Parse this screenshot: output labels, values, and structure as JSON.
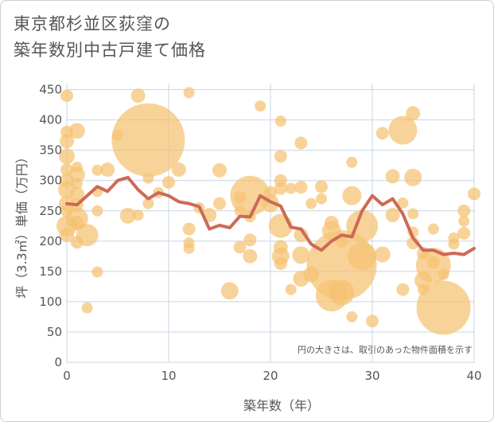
{
  "title": {
    "line1": "東京都杉並区荻窪の",
    "line2": "築年数別中古戸建て価格"
  },
  "note": "円の大きさは、取引のあった物件面積を示す",
  "colors": {
    "bubble": "#f5c271",
    "line": "#cd6a55",
    "grid": "#c8d4e0",
    "text": "#555555"
  },
  "chart_data": {
    "type": "scatter",
    "xlabel": "築年数（年）",
    "ylabel": "坪（3.3㎡）単価（万円）",
    "xlim": [
      0,
      40
    ],
    "ylim": [
      0,
      460
    ],
    "xticks": [
      0,
      10,
      20,
      30,
      40
    ],
    "yticks": [
      0,
      50,
      100,
      150,
      200,
      250,
      300,
      350,
      400,
      450
    ],
    "grid": true,
    "bubbles": [
      {
        "x": 0,
        "y": 440,
        "size": 8
      },
      {
        "x": 0,
        "y": 380,
        "size": 8
      },
      {
        "x": 0,
        "y": 365,
        "size": 9
      },
      {
        "x": 0,
        "y": 340,
        "size": 10
      },
      {
        "x": 0,
        "y": 318,
        "size": 8
      },
      {
        "x": 0,
        "y": 300,
        "size": 9
      },
      {
        "x": 0,
        "y": 285,
        "size": 11
      },
      {
        "x": 0,
        "y": 262,
        "size": 10
      },
      {
        "x": 0,
        "y": 250,
        "size": 8
      },
      {
        "x": 0,
        "y": 225,
        "size": 13
      },
      {
        "x": 0,
        "y": 210,
        "size": 9
      },
      {
        "x": 1,
        "y": 382,
        "size": 10
      },
      {
        "x": 1,
        "y": 322,
        "size": 7
      },
      {
        "x": 1,
        "y": 310,
        "size": 10
      },
      {
        "x": 1,
        "y": 295,
        "size": 7
      },
      {
        "x": 1,
        "y": 278,
        "size": 9
      },
      {
        "x": 1,
        "y": 260,
        "size": 8
      },
      {
        "x": 1,
        "y": 237,
        "size": 14
      },
      {
        "x": 1,
        "y": 230,
        "size": 9
      },
      {
        "x": 1,
        "y": 198,
        "size": 8
      },
      {
        "x": 2,
        "y": 210,
        "size": 14
      },
      {
        "x": 2,
        "y": 90,
        "size": 7
      },
      {
        "x": 3,
        "y": 317,
        "size": 7
      },
      {
        "x": 3,
        "y": 282,
        "size": 7
      },
      {
        "x": 3,
        "y": 250,
        "size": 7
      },
      {
        "x": 3,
        "y": 149,
        "size": 7
      },
      {
        "x": 4,
        "y": 318,
        "size": 9
      },
      {
        "x": 5,
        "y": 375,
        "size": 7
      },
      {
        "x": 6,
        "y": 242,
        "size": 10
      },
      {
        "x": 7,
        "y": 440,
        "size": 9
      },
      {
        "x": 7,
        "y": 243,
        "size": 7
      },
      {
        "x": 8,
        "y": 367,
        "size": 46
      },
      {
        "x": 8,
        "y": 304,
        "size": 7
      },
      {
        "x": 8,
        "y": 262,
        "size": 7
      },
      {
        "x": 9,
        "y": 280,
        "size": 7
      },
      {
        "x": 10,
        "y": 297,
        "size": 8
      },
      {
        "x": 11,
        "y": 318,
        "size": 9
      },
      {
        "x": 12,
        "y": 445,
        "size": 7
      },
      {
        "x": 12,
        "y": 220,
        "size": 8
      },
      {
        "x": 12,
        "y": 197,
        "size": 7
      },
      {
        "x": 12,
        "y": 188,
        "size": 7
      },
      {
        "x": 13,
        "y": 255,
        "size": 7
      },
      {
        "x": 14,
        "y": 243,
        "size": 9
      },
      {
        "x": 15,
        "y": 317,
        "size": 9
      },
      {
        "x": 15,
        "y": 262,
        "size": 8
      },
      {
        "x": 16,
        "y": 118,
        "size": 11
      },
      {
        "x": 17,
        "y": 272,
        "size": 8
      },
      {
        "x": 17,
        "y": 250,
        "size": 7
      },
      {
        "x": 17,
        "y": 190,
        "size": 8
      },
      {
        "x": 18,
        "y": 275,
        "size": 25
      },
      {
        "x": 18,
        "y": 202,
        "size": 8
      },
      {
        "x": 18,
        "y": 175,
        "size": 9
      },
      {
        "x": 18,
        "y": 240,
        "size": 7
      },
      {
        "x": 19,
        "y": 423,
        "size": 7
      },
      {
        "x": 20,
        "y": 262,
        "size": 11
      },
      {
        "x": 20,
        "y": 280,
        "size": 8
      },
      {
        "x": 21,
        "y": 398,
        "size": 7
      },
      {
        "x": 21,
        "y": 340,
        "size": 8
      },
      {
        "x": 21,
        "y": 300,
        "size": 8
      },
      {
        "x": 21,
        "y": 287,
        "size": 8
      },
      {
        "x": 21,
        "y": 225,
        "size": 15
      },
      {
        "x": 21,
        "y": 190,
        "size": 9
      },
      {
        "x": 21,
        "y": 175,
        "size": 11
      },
      {
        "x": 21,
        "y": 163,
        "size": 8
      },
      {
        "x": 22,
        "y": 287,
        "size": 7
      },
      {
        "x": 22,
        "y": 120,
        "size": 7
      },
      {
        "x": 23,
        "y": 362,
        "size": 8
      },
      {
        "x": 23,
        "y": 289,
        "size": 8
      },
      {
        "x": 23,
        "y": 210,
        "size": 9
      },
      {
        "x": 23,
        "y": 177,
        "size": 11
      },
      {
        "x": 23,
        "y": 138,
        "size": 10
      },
      {
        "x": 24,
        "y": 262,
        "size": 7
      },
      {
        "x": 24,
        "y": 145,
        "size": 10
      },
      {
        "x": 25,
        "y": 290,
        "size": 8
      },
      {
        "x": 25,
        "y": 270,
        "size": 7
      },
      {
        "x": 26,
        "y": 230,
        "size": 9
      },
      {
        "x": 26,
        "y": 217,
        "size": 12
      },
      {
        "x": 26,
        "y": 110,
        "size": 20
      },
      {
        "x": 27,
        "y": 160,
        "size": 44
      },
      {
        "x": 27,
        "y": 115,
        "size": 16
      },
      {
        "x": 27,
        "y": 200,
        "size": 8
      },
      {
        "x": 28,
        "y": 330,
        "size": 7
      },
      {
        "x": 28,
        "y": 275,
        "size": 12
      },
      {
        "x": 28,
        "y": 75,
        "size": 7
      },
      {
        "x": 29,
        "y": 225,
        "size": 20
      },
      {
        "x": 29,
        "y": 175,
        "size": 18
      },
      {
        "x": 30,
        "y": 68,
        "size": 8
      },
      {
        "x": 31,
        "y": 378,
        "size": 8
      },
      {
        "x": 31,
        "y": 178,
        "size": 10
      },
      {
        "x": 32,
        "y": 307,
        "size": 9
      },
      {
        "x": 32,
        "y": 243,
        "size": 9
      },
      {
        "x": 33,
        "y": 383,
        "size": 18
      },
      {
        "x": 33,
        "y": 263,
        "size": 7
      },
      {
        "x": 33,
        "y": 120,
        "size": 8
      },
      {
        "x": 34,
        "y": 411,
        "size": 9
      },
      {
        "x": 34,
        "y": 305,
        "size": 11
      },
      {
        "x": 34,
        "y": 245,
        "size": 7
      },
      {
        "x": 34,
        "y": 215,
        "size": 7
      },
      {
        "x": 34,
        "y": 197,
        "size": 8
      },
      {
        "x": 35,
        "y": 180,
        "size": 8
      },
      {
        "x": 35,
        "y": 135,
        "size": 11
      },
      {
        "x": 35,
        "y": 120,
        "size": 7
      },
      {
        "x": 36,
        "y": 220,
        "size": 7
      },
      {
        "x": 36,
        "y": 160,
        "size": 22
      },
      {
        "x": 36,
        "y": 165,
        "size": 8
      },
      {
        "x": 37,
        "y": 145,
        "size": 7
      },
      {
        "x": 37,
        "y": 90,
        "size": 34
      },
      {
        "x": 38,
        "y": 205,
        "size": 7
      },
      {
        "x": 38,
        "y": 195,
        "size": 7
      },
      {
        "x": 39,
        "y": 250,
        "size": 8
      },
      {
        "x": 39,
        "y": 233,
        "size": 7
      },
      {
        "x": 39,
        "y": 213,
        "size": 8
      },
      {
        "x": 40,
        "y": 278,
        "size": 8
      }
    ],
    "series": [
      {
        "type": "line",
        "x": [
          0,
          1,
          2,
          3,
          4,
          5,
          6,
          7,
          8,
          9,
          10,
          11,
          12,
          13,
          14,
          15,
          16,
          17,
          18,
          19,
          20,
          21,
          22,
          23,
          24,
          25,
          26,
          27,
          28,
          29,
          30,
          31,
          32,
          33,
          34,
          35,
          36,
          37,
          38,
          39,
          40
        ],
        "values": [
          262,
          260,
          275,
          290,
          282,
          300,
          305,
          285,
          270,
          280,
          275,
          265,
          262,
          257,
          220,
          226,
          222,
          241,
          240,
          275,
          265,
          258,
          223,
          220,
          195,
          185,
          200,
          210,
          207,
          250,
          275,
          260,
          270,
          245,
          205,
          185,
          185,
          178,
          180,
          178,
          188
        ]
      }
    ]
  }
}
